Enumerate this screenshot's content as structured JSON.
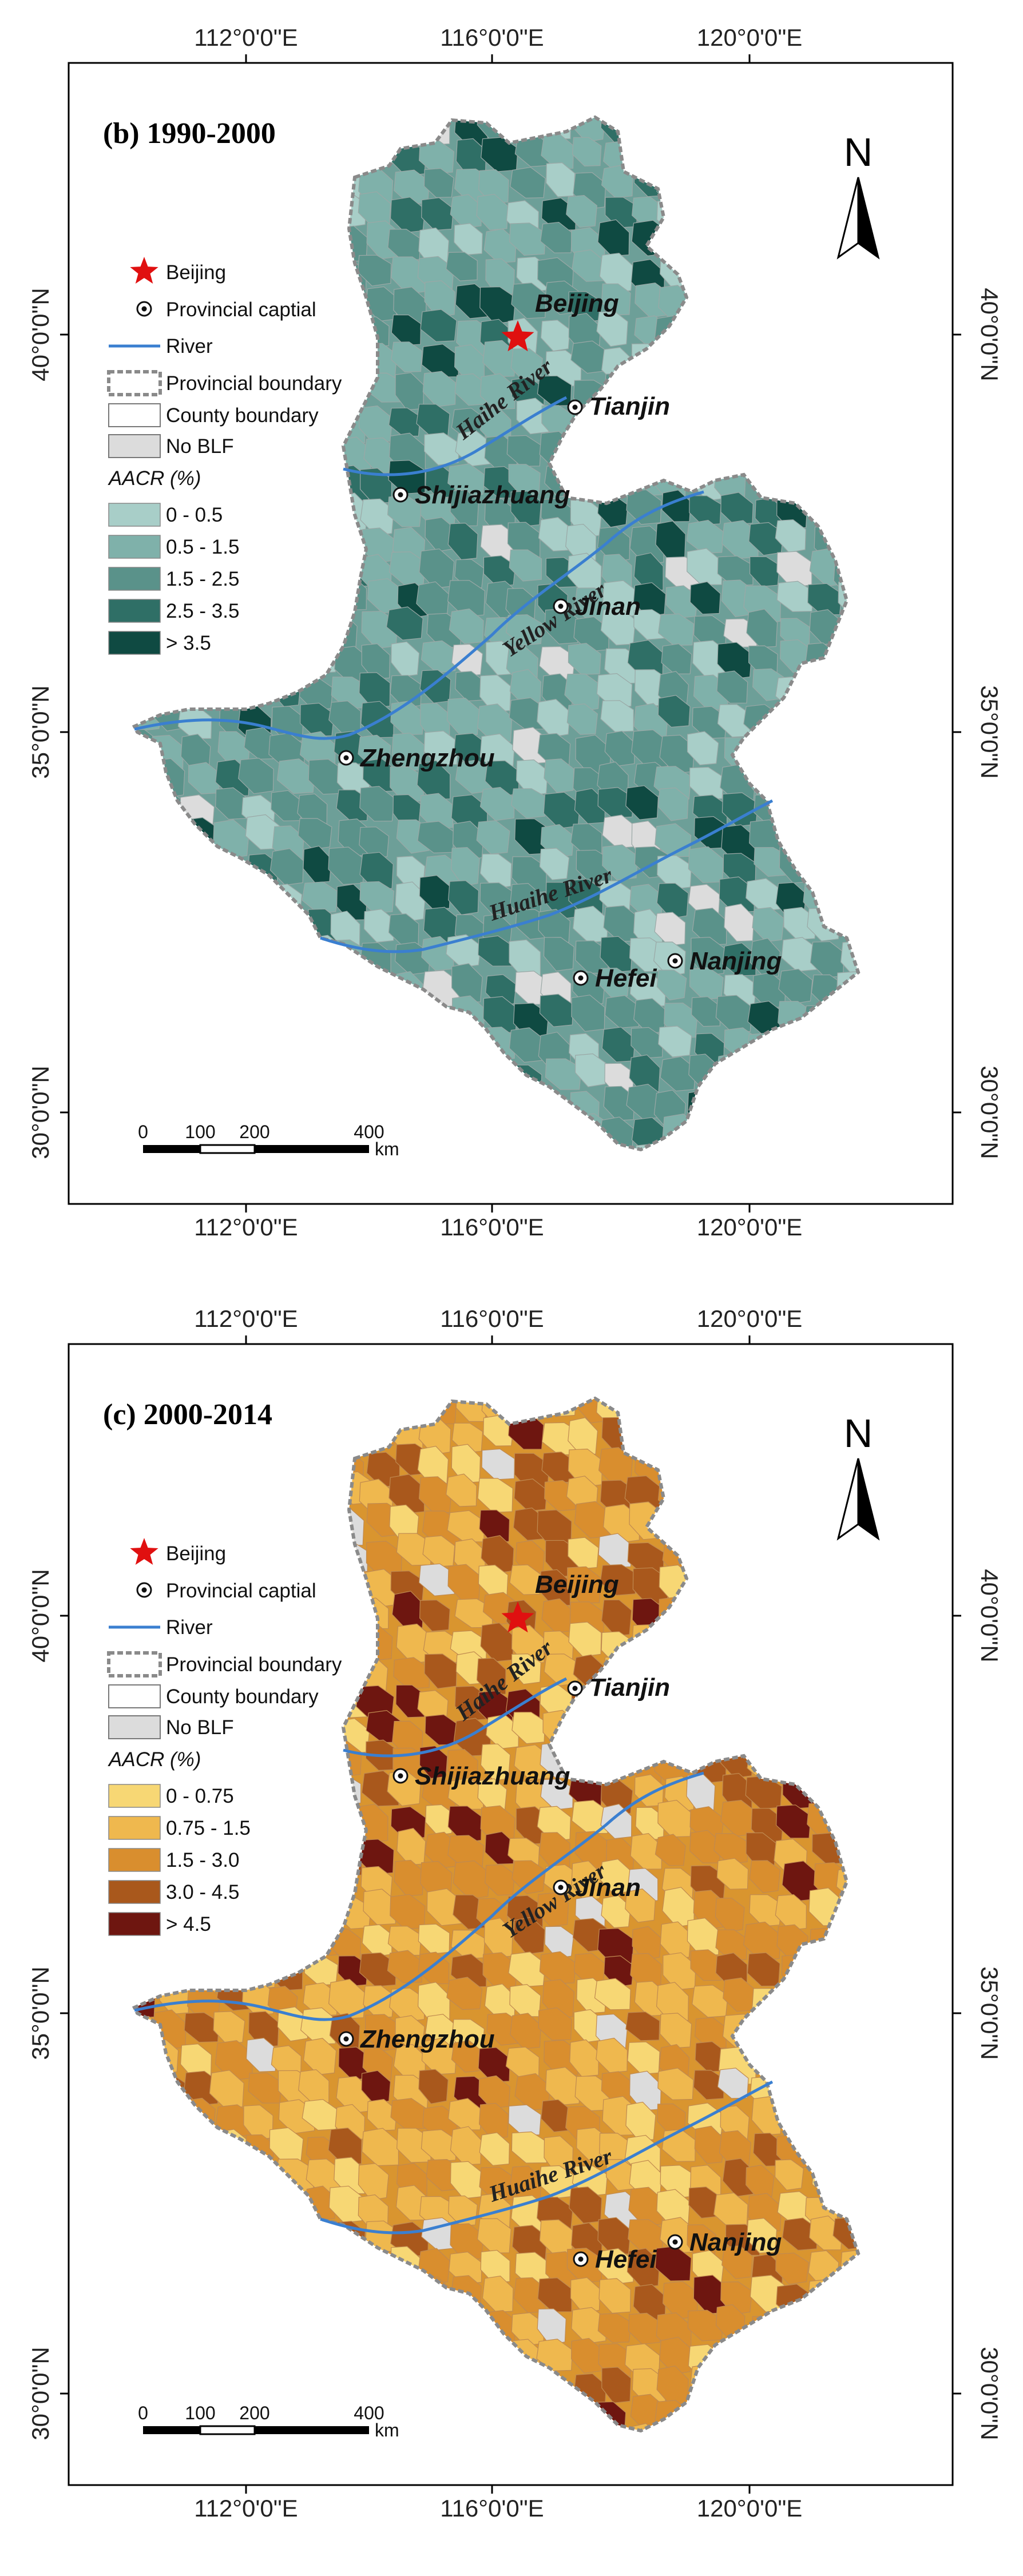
{
  "panels": [
    {
      "title": "(b) 1990-2000",
      "top_lon_labels": [
        "112°0'0\"E",
        "116°0'0\"E",
        "120°0'0\"E"
      ],
      "bottom_lon_labels": [
        "112°0'0\"E",
        "116°0'0\"E",
        "120°0'0\"E"
      ],
      "lat_labels": [
        "40°0'0\"N",
        "35°0'0\"N",
        "30°0'0\"N"
      ],
      "legend": {
        "beijing": "Beijing",
        "capital": "Provincial captial",
        "river": "River",
        "prov_boundary": "Provincial boundary",
        "county_boundary": "County boundary",
        "no_blf": "No BLF",
        "heading": "AACR (%)",
        "classes": [
          "0 - 0.5",
          "0.5 - 1.5",
          "1.5 - 2.5",
          "2.5 - 3.5",
          "> 3.5"
        ],
        "colors": [
          "#a8cec8",
          "#7fb1aa",
          "#5a928a",
          "#2f6f66",
          "#0f4a42"
        ]
      },
      "cities": [
        "Beijing",
        "Tianjin",
        "Shijiazhuang",
        "Jinan",
        "Zhengzhou",
        "Hefei",
        "Nanjing"
      ],
      "rivers": [
        "Haihe River",
        "Yellow River",
        "Huaihe River"
      ],
      "north": "N",
      "scale": {
        "ticks": [
          "0",
          "100",
          "200",
          "400"
        ],
        "unit": "km"
      }
    },
    {
      "title": "(c) 2000-2014",
      "top_lon_labels": [
        "112°0'0\"E",
        "116°0'0\"E",
        "120°0'0\"E"
      ],
      "bottom_lon_labels": [
        "112°0'0\"E",
        "116°0'0\"E",
        "120°0'0\"E"
      ],
      "lat_labels": [
        "40°0'0\"N",
        "35°0'0\"N",
        "30°0'0\"N"
      ],
      "legend": {
        "beijing": "Beijing",
        "capital": "Provincial captial",
        "river": "River",
        "prov_boundary": "Provincial boundary",
        "county_boundary": "County boundary",
        "no_blf": "No BLF",
        "heading": "AACR (%)",
        "classes": [
          "0 - 0.75",
          "0.75 - 1.5",
          "1.5 - 3.0",
          "3.0 - 4.5",
          "> 4.5"
        ],
        "colors": [
          "#f7d774",
          "#efb84e",
          "#d98e2e",
          "#a9581c",
          "#6e1610"
        ]
      },
      "cities": [
        "Beijing",
        "Tianjin",
        "Shijiazhuang",
        "Jinan",
        "Zhengzhou",
        "Hefei",
        "Nanjing"
      ],
      "rivers": [
        "Haihe River",
        "Yellow River",
        "Huaihe River"
      ],
      "north": "N",
      "scale": {
        "ticks": [
          "0",
          "100",
          "200",
          "400"
        ],
        "unit": "km"
      }
    }
  ],
  "colors": {
    "river": "#3a7fd0",
    "beijing_star": "#e01010",
    "no_blf": "#dcdcdc",
    "frame": "#000000"
  }
}
